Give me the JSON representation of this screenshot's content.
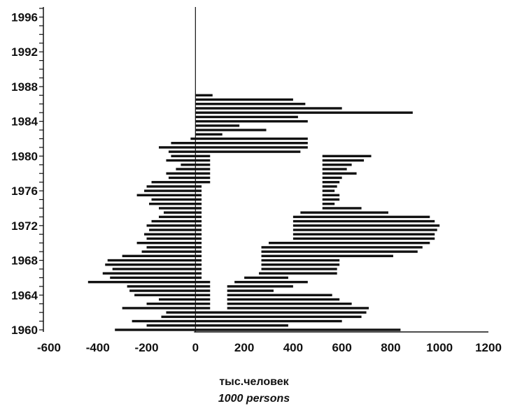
{
  "chart_data": {
    "type": "bar",
    "orientation": "horizontal",
    "title": "",
    "xlabel": "тыс.человек",
    "xlabel_en": "1000 persons",
    "ylabel": "",
    "xlim": [
      -600,
      1200
    ],
    "ylim": [
      1960,
      1997
    ],
    "x_ticks": [
      -600,
      -400,
      -200,
      0,
      200,
      400,
      600,
      800,
      1000,
      1200
    ],
    "y_ticks": [
      1960,
      1964,
      1968,
      1972,
      1976,
      1980,
      1984,
      1988,
      1992,
      1996
    ],
    "grid": false,
    "legend": "none",
    "bar_color": "#111111",
    "rows": [
      {
        "year": 1960.0,
        "segments": [
          [
            -330,
            0
          ],
          [
            0,
            840
          ]
        ]
      },
      {
        "year": 1960.5,
        "segments": [
          [
            -200,
            0
          ],
          [
            0,
            380
          ]
        ]
      },
      {
        "year": 1961.0,
        "segments": [
          [
            -260,
            0
          ],
          [
            0,
            600
          ]
        ]
      },
      {
        "year": 1961.5,
        "segments": [
          [
            -140,
            0
          ],
          [
            0,
            680
          ]
        ]
      },
      {
        "year": 1962.0,
        "segments": [
          [
            -120,
            0
          ],
          [
            0,
            700
          ]
        ]
      },
      {
        "year": 1962.5,
        "segments": [
          [
            -300,
            0
          ],
          [
            0,
            60
          ],
          [
            130,
            710
          ]
        ]
      },
      {
        "year": 1963.0,
        "segments": [
          [
            -200,
            0
          ],
          [
            0,
            60
          ],
          [
            130,
            640
          ]
        ]
      },
      {
        "year": 1963.5,
        "segments": [
          [
            -150,
            0
          ],
          [
            0,
            60
          ],
          [
            130,
            590
          ]
        ]
      },
      {
        "year": 1964.0,
        "segments": [
          [
            -250,
            0
          ],
          [
            0,
            60
          ],
          [
            130,
            560
          ]
        ]
      },
      {
        "year": 1964.5,
        "segments": [
          [
            -270,
            0
          ],
          [
            0,
            60
          ],
          [
            130,
            320
          ]
        ]
      },
      {
        "year": 1965.0,
        "segments": [
          [
            -280,
            0
          ],
          [
            0,
            60
          ],
          [
            130,
            400
          ]
        ]
      },
      {
        "year": 1965.5,
        "segments": [
          [
            -440,
            0
          ],
          [
            0,
            60
          ],
          [
            160,
            460
          ]
        ]
      },
      {
        "year": 1966.0,
        "segments": [
          [
            -350,
            0
          ],
          [
            0,
            25
          ],
          [
            200,
            380
          ]
        ]
      },
      {
        "year": 1966.5,
        "segments": [
          [
            -380,
            0
          ],
          [
            0,
            25
          ],
          [
            260,
            580
          ]
        ]
      },
      {
        "year": 1967.0,
        "segments": [
          [
            -340,
            0
          ],
          [
            0,
            25
          ],
          [
            270,
            580
          ]
        ]
      },
      {
        "year": 1967.5,
        "segments": [
          [
            -370,
            0
          ],
          [
            0,
            25
          ],
          [
            270,
            590
          ]
        ]
      },
      {
        "year": 1968.0,
        "segments": [
          [
            -360,
            0
          ],
          [
            0,
            25
          ],
          [
            270,
            590
          ]
        ]
      },
      {
        "year": 1968.5,
        "segments": [
          [
            -300,
            0
          ],
          [
            0,
            25
          ],
          [
            270,
            810
          ]
        ]
      },
      {
        "year": 1969.0,
        "segments": [
          [
            -220,
            0
          ],
          [
            0,
            25
          ],
          [
            270,
            910
          ]
        ]
      },
      {
        "year": 1969.5,
        "segments": [
          [
            -200,
            0
          ],
          [
            0,
            25
          ],
          [
            270,
            930
          ]
        ]
      },
      {
        "year": 1970.0,
        "segments": [
          [
            -240,
            0
          ],
          [
            0,
            25
          ],
          [
            300,
            960
          ]
        ]
      },
      {
        "year": 1970.5,
        "segments": [
          [
            -200,
            0
          ],
          [
            0,
            25
          ],
          [
            400,
            980
          ]
        ]
      },
      {
        "year": 1971.0,
        "segments": [
          [
            -210,
            0
          ],
          [
            0,
            25
          ],
          [
            400,
            980
          ]
        ]
      },
      {
        "year": 1971.5,
        "segments": [
          [
            -190,
            0
          ],
          [
            0,
            25
          ],
          [
            400,
            990
          ]
        ]
      },
      {
        "year": 1972.0,
        "segments": [
          [
            -200,
            0
          ],
          [
            0,
            25
          ],
          [
            400,
            1000
          ]
        ]
      },
      {
        "year": 1972.5,
        "segments": [
          [
            -180,
            0
          ],
          [
            0,
            25
          ],
          [
            400,
            980
          ]
        ]
      },
      {
        "year": 1973.0,
        "segments": [
          [
            -150,
            0
          ],
          [
            0,
            25
          ],
          [
            400,
            960
          ]
        ]
      },
      {
        "year": 1973.5,
        "segments": [
          [
            -130,
            0
          ],
          [
            0,
            25
          ],
          [
            430,
            790
          ]
        ]
      },
      {
        "year": 1974.0,
        "segments": [
          [
            -150,
            0
          ],
          [
            0,
            25
          ],
          [
            520,
            680
          ]
        ]
      },
      {
        "year": 1974.5,
        "segments": [
          [
            -190,
            0
          ],
          [
            0,
            25
          ],
          [
            520,
            570
          ]
        ]
      },
      {
        "year": 1975.0,
        "segments": [
          [
            -180,
            0
          ],
          [
            0,
            25
          ],
          [
            520,
            590
          ]
        ]
      },
      {
        "year": 1975.5,
        "segments": [
          [
            -240,
            0
          ],
          [
            0,
            25
          ],
          [
            520,
            590
          ]
        ]
      },
      {
        "year": 1976.0,
        "segments": [
          [
            -210,
            0
          ],
          [
            0,
            25
          ],
          [
            520,
            570
          ]
        ]
      },
      {
        "year": 1976.5,
        "segments": [
          [
            -200,
            0
          ],
          [
            0,
            25
          ],
          [
            520,
            580
          ]
        ]
      },
      {
        "year": 1977.0,
        "segments": [
          [
            -180,
            0
          ],
          [
            0,
            60
          ],
          [
            520,
            590
          ]
        ]
      },
      {
        "year": 1977.5,
        "segments": [
          [
            -110,
            0
          ],
          [
            0,
            60
          ],
          [
            520,
            600
          ]
        ]
      },
      {
        "year": 1978.0,
        "segments": [
          [
            -120,
            0
          ],
          [
            0,
            60
          ],
          [
            520,
            660
          ]
        ]
      },
      {
        "year": 1978.5,
        "segments": [
          [
            -80,
            0
          ],
          [
            0,
            60
          ],
          [
            520,
            620
          ]
        ]
      },
      {
        "year": 1979.0,
        "segments": [
          [
            -60,
            0
          ],
          [
            0,
            60
          ],
          [
            520,
            640
          ]
        ]
      },
      {
        "year": 1979.5,
        "segments": [
          [
            -120,
            0
          ],
          [
            0,
            60
          ],
          [
            520,
            690
          ]
        ]
      },
      {
        "year": 1980.0,
        "segments": [
          [
            -100,
            0
          ],
          [
            0,
            60
          ],
          [
            520,
            720
          ]
        ]
      },
      {
        "year": 1980.5,
        "segments": [
          [
            -110,
            0
          ],
          [
            0,
            430
          ]
        ]
      },
      {
        "year": 1981.0,
        "segments": [
          [
            -150,
            0
          ],
          [
            0,
            460
          ]
        ]
      },
      {
        "year": 1981.5,
        "segments": [
          [
            -100,
            0
          ],
          [
            0,
            460
          ]
        ]
      },
      {
        "year": 1982.0,
        "segments": [
          [
            -20,
            0
          ],
          [
            0,
            460
          ]
        ]
      },
      {
        "year": 1982.5,
        "segments": [
          [
            0,
            110
          ]
        ]
      },
      {
        "year": 1983.0,
        "segments": [
          [
            0,
            290
          ]
        ]
      },
      {
        "year": 1983.5,
        "segments": [
          [
            0,
            180
          ]
        ]
      },
      {
        "year": 1984.0,
        "segments": [
          [
            0,
            460
          ]
        ]
      },
      {
        "year": 1984.5,
        "segments": [
          [
            0,
            420
          ]
        ]
      },
      {
        "year": 1985.0,
        "segments": [
          [
            0,
            890
          ]
        ]
      },
      {
        "year": 1985.5,
        "segments": [
          [
            0,
            600
          ]
        ]
      },
      {
        "year": 1986.0,
        "segments": [
          [
            0,
            450
          ]
        ]
      },
      {
        "year": 1986.5,
        "segments": [
          [
            0,
            400
          ]
        ]
      },
      {
        "year": 1987.0,
        "segments": [
          [
            0,
            70
          ]
        ]
      }
    ]
  }
}
